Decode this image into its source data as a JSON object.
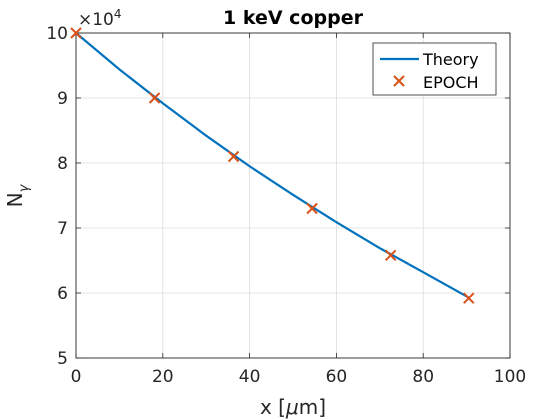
{
  "chart_data": {
    "type": "line",
    "title": "1 keV copper",
    "xlabel": "x [",
    "xlabel_mu": "μ",
    "xlabel_unit": "m]",
    "ylabel": "N",
    "ylabel_sub": "γ",
    "xlim": [
      0,
      100
    ],
    "ylim": [
      5,
      10
    ],
    "xticks": [
      "0",
      "20",
      "40",
      "60",
      "80",
      "100"
    ],
    "yticks": [
      "5",
      "6",
      "7",
      "8",
      "9",
      "10"
    ],
    "y_exponent_base": "×10",
    "y_exponent_power": "4",
    "grid": true,
    "legend_position": "top-right",
    "colors": {
      "theory": "#0072BD",
      "epoch": "#D95319"
    },
    "series": [
      {
        "name": "Theory",
        "style": "line",
        "x": [
          0,
          10,
          20,
          30,
          40,
          50,
          60,
          70,
          80,
          90.5
        ],
        "y": [
          10.0,
          9.44,
          8.92,
          8.42,
          7.95,
          7.51,
          7.09,
          6.69,
          6.32,
          5.93
        ]
      },
      {
        "name": "EPOCH",
        "style": "marker-x",
        "x": [
          0,
          18.1,
          36.3,
          54.4,
          72.5,
          90.5
        ],
        "y": [
          10.0,
          9.0,
          8.1,
          7.3,
          6.58,
          5.92
        ]
      }
    ]
  }
}
